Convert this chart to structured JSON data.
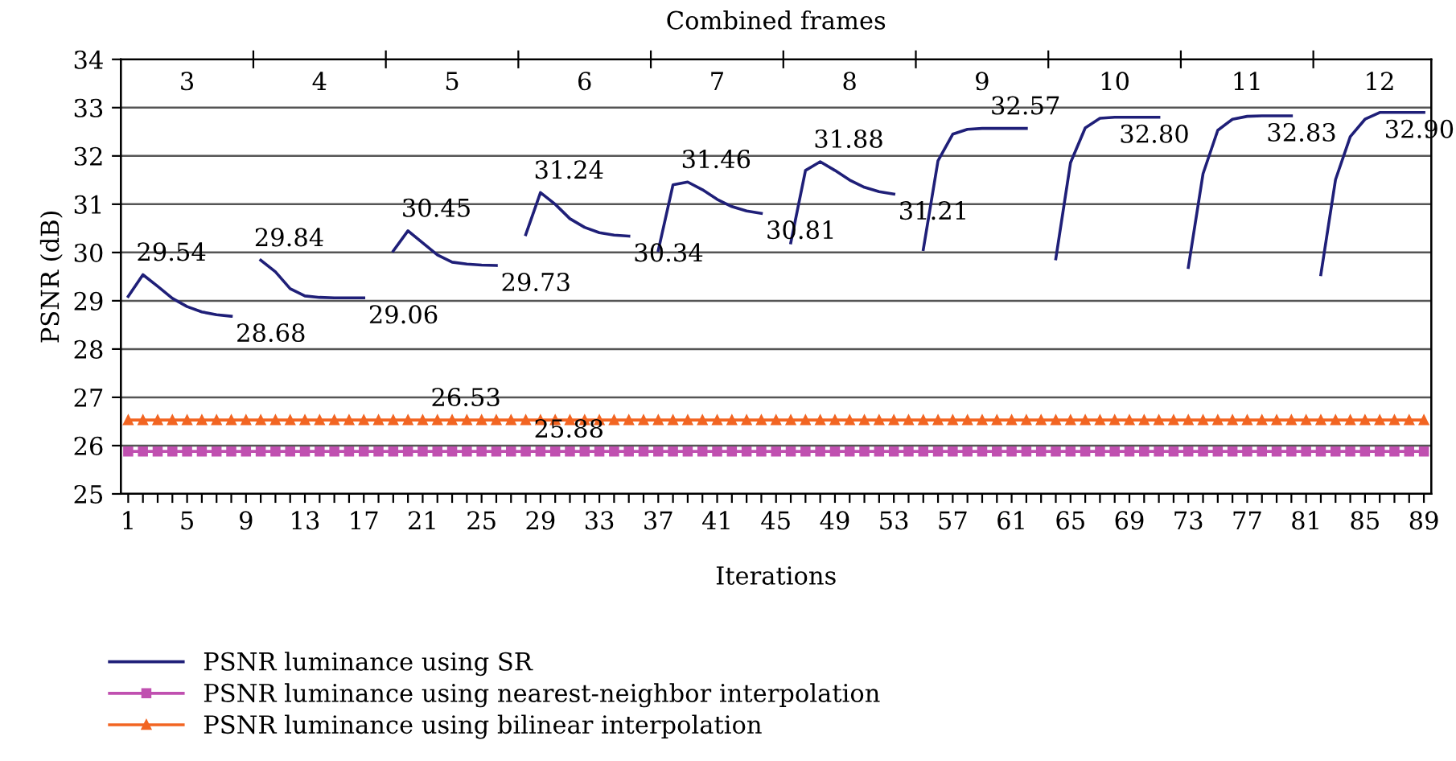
{
  "chart_data": {
    "type": "line",
    "xlabel": "Iterations",
    "ylabel": "PSNR (dB)",
    "x2label": "Combined frames",
    "x": [
      1,
      2,
      3,
      4,
      5,
      6,
      7,
      8,
      9,
      10,
      11,
      12,
      13,
      14,
      15,
      16,
      17,
      18,
      19,
      20,
      21,
      22,
      23,
      24,
      25,
      26,
      27,
      28,
      29,
      30,
      31,
      32,
      33,
      34,
      35,
      36,
      37,
      38,
      39,
      40,
      41,
      42,
      43,
      44,
      45,
      46,
      47,
      48,
      49,
      50,
      51,
      52,
      53,
      54,
      55,
      56,
      57,
      58,
      59,
      60,
      61,
      62,
      63,
      64,
      65,
      66,
      67,
      68,
      69,
      70,
      71,
      72,
      73,
      74,
      75,
      76,
      77,
      78,
      79,
      80,
      81,
      82,
      83,
      84,
      85,
      86,
      87,
      88,
      89
    ],
    "series": [
      {
        "name": "PSNR luminance using SR",
        "color": "#1f1f78",
        "marker": "none",
        "values": [
          29.09,
          29.54,
          29.3,
          29.05,
          28.88,
          28.77,
          28.71,
          28.68,
          null,
          29.84,
          29.6,
          29.25,
          29.1,
          29.07,
          29.06,
          29.06,
          29.06,
          null,
          30.03,
          30.45,
          30.2,
          29.95,
          29.8,
          29.76,
          29.74,
          29.73,
          null,
          30.37,
          31.24,
          31.0,
          30.7,
          30.52,
          30.41,
          30.36,
          30.34,
          null,
          30.04,
          31.4,
          31.46,
          31.3,
          31.1,
          30.95,
          30.86,
          30.81,
          null,
          30.2,
          31.7,
          31.88,
          31.7,
          31.5,
          31.35,
          31.26,
          31.21,
          null,
          30.06,
          31.9,
          32.45,
          32.55,
          32.57,
          32.57,
          32.57,
          32.57,
          null,
          29.87,
          31.86,
          32.58,
          32.78,
          32.8,
          32.8,
          32.8,
          32.8,
          null,
          29.69,
          31.63,
          32.53,
          32.76,
          32.82,
          32.83,
          32.83,
          32.83,
          null,
          29.54,
          31.51,
          32.4,
          32.76,
          32.9,
          32.9,
          32.9,
          32.9
        ]
      },
      {
        "name": "PSNR luminance using nearest-neighbor interpolation",
        "color": "#c050b0",
        "marker": "square",
        "values": [
          25.88,
          25.88,
          25.88,
          25.88,
          25.88,
          25.88,
          25.88,
          25.88,
          25.88,
          25.88,
          25.88,
          25.88,
          25.88,
          25.88,
          25.88,
          25.88,
          25.88,
          25.88,
          25.88,
          25.88,
          25.88,
          25.88,
          25.88,
          25.88,
          25.88,
          25.88,
          25.88,
          25.88,
          25.88,
          25.88,
          25.88,
          25.88,
          25.88,
          25.88,
          25.88,
          25.88,
          25.88,
          25.88,
          25.88,
          25.88,
          25.88,
          25.88,
          25.88,
          25.88,
          25.88,
          25.88,
          25.88,
          25.88,
          25.88,
          25.88,
          25.88,
          25.88,
          25.88,
          25.88,
          25.88,
          25.88,
          25.88,
          25.88,
          25.88,
          25.88,
          25.88,
          25.88,
          25.88,
          25.88,
          25.88,
          25.88,
          25.88,
          25.88,
          25.88,
          25.88,
          25.88,
          25.88,
          25.88,
          25.88,
          25.88,
          25.88,
          25.88,
          25.88,
          25.88,
          25.88,
          25.88,
          25.88,
          25.88,
          25.88,
          25.88,
          25.88,
          25.88,
          25.88,
          25.88
        ]
      },
      {
        "name": "PSNR luminance using bilinear interpolation",
        "color": "#f26522",
        "marker": "triangle",
        "values": [
          26.53,
          26.53,
          26.53,
          26.53,
          26.53,
          26.53,
          26.53,
          26.53,
          26.53,
          26.53,
          26.53,
          26.53,
          26.53,
          26.53,
          26.53,
          26.53,
          26.53,
          26.53,
          26.53,
          26.53,
          26.53,
          26.53,
          26.53,
          26.53,
          26.53,
          26.53,
          26.53,
          26.53,
          26.53,
          26.53,
          26.53,
          26.53,
          26.53,
          26.53,
          26.53,
          26.53,
          26.53,
          26.53,
          26.53,
          26.53,
          26.53,
          26.53,
          26.53,
          26.53,
          26.53,
          26.53,
          26.53,
          26.53,
          26.53,
          26.53,
          26.53,
          26.53,
          26.53,
          26.53,
          26.53,
          26.53,
          26.53,
          26.53,
          26.53,
          26.53,
          26.53,
          26.53,
          26.53,
          26.53,
          26.53,
          26.53,
          26.53,
          26.53,
          26.53,
          26.53,
          26.53,
          26.53,
          26.53,
          26.53,
          26.53,
          26.53,
          26.53,
          26.53,
          26.53,
          26.53,
          26.53,
          26.53,
          26.53,
          26.53,
          26.53,
          26.53,
          26.53,
          26.53,
          26.53
        ]
      }
    ],
    "annotations": [
      {
        "text": "29.54",
        "x": 2,
        "y": 29.54
      },
      {
        "text": "28.68",
        "x": 8,
        "y": 28.68
      },
      {
        "text": "29.84",
        "x": 10,
        "y": 29.84
      },
      {
        "text": "29.06",
        "x": 17,
        "y": 29.06
      },
      {
        "text": "30.45",
        "x": 20,
        "y": 30.45
      },
      {
        "text": "29.73",
        "x": 26,
        "y": 29.73
      },
      {
        "text": "31.24",
        "x": 29,
        "y": 31.24
      },
      {
        "text": "30.34",
        "x": 35,
        "y": 30.34
      },
      {
        "text": "31.46",
        "x": 39,
        "y": 31.46
      },
      {
        "text": "30.81",
        "x": 44,
        "y": 30.81
      },
      {
        "text": "31.88",
        "x": 48,
        "y": 31.88
      },
      {
        "text": "31.21",
        "x": 53,
        "y": 31.21
      },
      {
        "text": "32.57",
        "x": 60,
        "y": 32.57
      },
      {
        "text": "32.80",
        "x": 68,
        "y": 32.8
      },
      {
        "text": "32.83",
        "x": 78,
        "y": 32.83
      },
      {
        "text": "32.90",
        "x": 86,
        "y": 32.9
      },
      {
        "text": "26.53",
        "x": 22,
        "y": 26.53
      },
      {
        "text": "25.88",
        "x": 29,
        "y": 25.88
      }
    ],
    "xlim": [
      0.5,
      89.5
    ],
    "xticks": [
      1,
      {
        "value": 2,
        "label": null
      },
      {
        "value": 3,
        "label": null
      },
      {
        "value": 4,
        "label": null
      },
      5,
      {
        "value": 6,
        "label": null
      },
      {
        "value": 7,
        "label": null
      },
      {
        "value": 8,
        "label": null
      },
      9,
      {
        "value": 10,
        "label": null
      },
      {
        "value": 11,
        "label": null
      },
      {
        "value": 12,
        "label": null
      },
      13,
      {
        "value": 14,
        "label": null
      },
      {
        "value": 15,
        "label": null
      },
      {
        "value": 16,
        "label": null
      },
      17,
      {
        "value": 18,
        "label": null
      },
      {
        "value": 19,
        "label": null
      },
      {
        "value": 20,
        "label": null
      },
      21,
      {
        "value": 22,
        "label": null
      },
      {
        "value": 23,
        "label": null
      },
      {
        "value": 24,
        "label": null
      },
      25,
      {
        "value": 26,
        "label": null
      },
      {
        "value": 27,
        "label": null
      },
      {
        "value": 28,
        "label": null
      },
      29,
      {
        "value": 30,
        "label": null
      },
      {
        "value": 31,
        "label": null
      },
      {
        "value": 32,
        "label": null
      },
      33,
      {
        "value": 34,
        "label": null
      },
      {
        "value": 35,
        "label": null
      },
      {
        "value": 36,
        "label": null
      },
      37,
      {
        "value": 38,
        "label": null
      },
      {
        "value": 39,
        "label": null
      },
      {
        "value": 40,
        "label": null
      },
      41,
      {
        "value": 42,
        "label": null
      },
      {
        "value": 43,
        "label": null
      },
      {
        "value": 44,
        "label": null
      },
      45,
      {
        "value": 46,
        "label": null
      },
      {
        "value": 47,
        "label": null
      },
      {
        "value": 48,
        "label": null
      },
      49,
      {
        "value": 50,
        "label": null
      },
      {
        "value": 51,
        "label": null
      },
      {
        "value": 52,
        "label": null
      },
      53,
      {
        "value": 54,
        "label": null
      },
      {
        "value": 55,
        "label": null
      },
      {
        "value": 56,
        "label": null
      },
      57,
      {
        "value": 58,
        "label": null
      },
      {
        "value": 59,
        "label": null
      },
      {
        "value": 60,
        "label": null
      },
      61,
      {
        "value": 62,
        "label": null
      },
      {
        "value": 63,
        "label": null
      },
      {
        "value": 64,
        "label": null
      },
      65,
      {
        "value": 66,
        "label": null
      },
      {
        "value": 67,
        "label": null
      },
      {
        "value": 68,
        "label": null
      },
      69,
      {
        "value": 70,
        "label": null
      },
      {
        "value": 71,
        "label": null
      },
      {
        "value": 72,
        "label": null
      },
      73,
      {
        "value": 74,
        "label": null
      },
      {
        "value": 75,
        "label": null
      },
      {
        "value": 76,
        "label": null
      },
      77,
      {
        "value": 78,
        "label": null
      },
      {
        "value": 79,
        "label": null
      },
      {
        "value": 80,
        "label": null
      },
      81,
      {
        "value": 82,
        "label": null
      },
      {
        "value": 83,
        "label": null
      },
      {
        "value": 84,
        "label": null
      },
      85,
      {
        "value": 86,
        "label": null
      },
      {
        "value": 87,
        "label": null
      },
      {
        "value": 88,
        "label": null
      },
      89
    ],
    "x2lim": [
      2.5,
      12.39
    ],
    "x2ticks": [
      {
        "value": 3.5,
        "label": null
      },
      {
        "value": 4.5,
        "label": null
      },
      {
        "value": 5.5,
        "label": null
      },
      {
        "value": 6.5,
        "label": null
      },
      {
        "value": 7.5,
        "label": null
      },
      {
        "value": 8.5,
        "label": null
      },
      {
        "value": 9.5,
        "label": null
      },
      {
        "value": 10.5,
        "label": null
      },
      {
        "value": 11.5,
        "label": null
      },
      3,
      4,
      5,
      6,
      7,
      8,
      9,
      10,
      11,
      12
    ],
    "ylim": [
      25,
      34
    ],
    "yticks": [
      25,
      26,
      27,
      28,
      29,
      30,
      31,
      32,
      33,
      34
    ],
    "grid": "y",
    "legend": "bottom left",
    "line_style": "solid"
  }
}
